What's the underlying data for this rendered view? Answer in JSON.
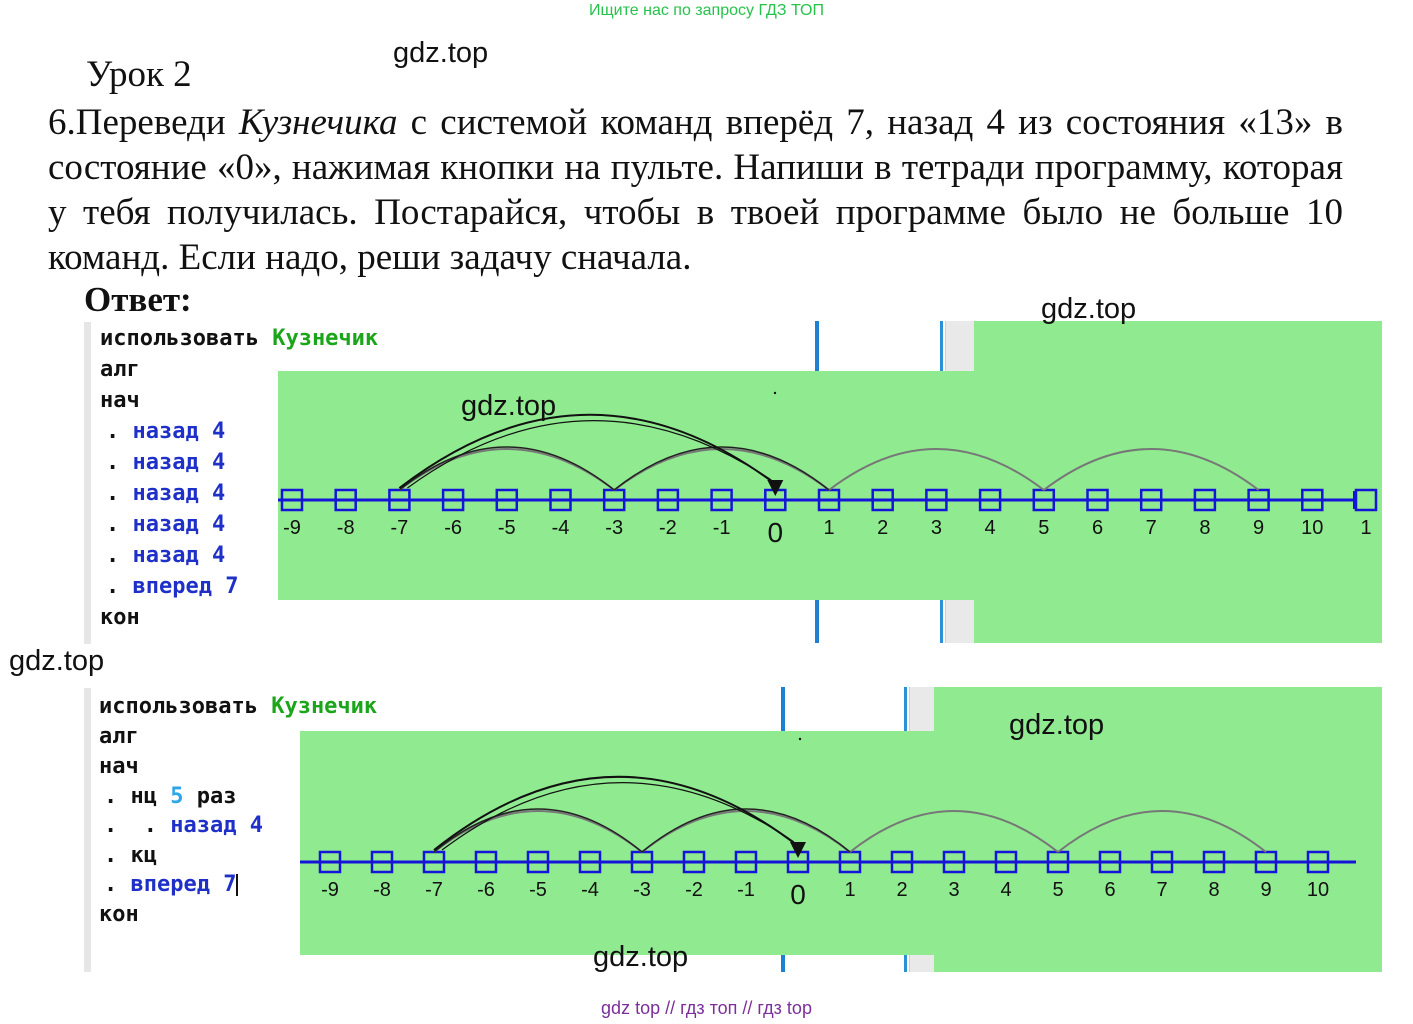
{
  "banner": "Ищите нас по запросу ГДЗ ТОП",
  "watermark": "gdz.top",
  "lesson_title": "Урок 2",
  "task": {
    "number": "6.",
    "part1": "Переведи ",
    "italic": "Кузнечика",
    "part2": " с системой команд вперёд 7, назад 4 из состояния «13» в состояние «0», нажимая кнопки на пульте. Напиши в тетради программу, которая у тебя получилась. Постарайся, чтобы в твоей программе было не больше 10 команд. Если надо, реши задачу сначала."
  },
  "answer_label": "Ответ:",
  "program1": {
    "use_kw": "использовать",
    "use_name": "Кузнечик",
    "alg": "алг",
    "nach": "нач",
    "dot": ".",
    "cmd_back": "назад",
    "cmd_back_arg": "4",
    "cmd_fwd": "вперед",
    "cmd_fwd_arg": "7",
    "kon": "кон"
  },
  "program2": {
    "use_kw": "использовать",
    "use_name": "Кузнечик",
    "alg": "алг",
    "nach": "нач",
    "dot": ".",
    "loop_kw": "нц",
    "loop_count": "5",
    "loop_times": "раз",
    "cmd_back": "назад",
    "cmd_back_arg": "4",
    "loop_end": "кц",
    "cmd_fwd": "вперед",
    "cmd_fwd_arg": "7",
    "kon": "кон"
  },
  "numberline1": {
    "ticks": [
      "-9",
      "-8",
      "-7",
      "-6",
      "-5",
      "-4",
      "-3",
      "-2",
      "-1",
      "0",
      "1",
      "2",
      "3",
      "4",
      "5",
      "6",
      "7",
      "8",
      "9",
      "10",
      "1"
    ],
    "jumps_back": [
      [
        9,
        5
      ],
      [
        5,
        1
      ],
      [
        1,
        -3
      ],
      [
        -3,
        -7
      ]
    ],
    "jump_forward": [
      -7,
      0
    ]
  },
  "numberline2": {
    "ticks": [
      "-9",
      "-8",
      "-7",
      "-6",
      "-5",
      "-4",
      "-3",
      "-2",
      "-1",
      "0",
      "1",
      "2",
      "3",
      "4",
      "5",
      "6",
      "7",
      "8",
      "9",
      "10"
    ],
    "jumps_back": [
      [
        9,
        5
      ],
      [
        5,
        1
      ],
      [
        1,
        -3
      ],
      [
        -3,
        -7
      ]
    ],
    "jump_forward": [
      -7,
      0
    ]
  },
  "colors": {
    "panel": "#90ea90",
    "keyword_green": "#1aa51a",
    "keyword_blue": "#1f30c9",
    "line_blue": "#1515d9",
    "footer": "#7b2f9a",
    "banner": "#27c24c"
  },
  "footer": "gdz top  //  гдз топ  //  гдз top"
}
